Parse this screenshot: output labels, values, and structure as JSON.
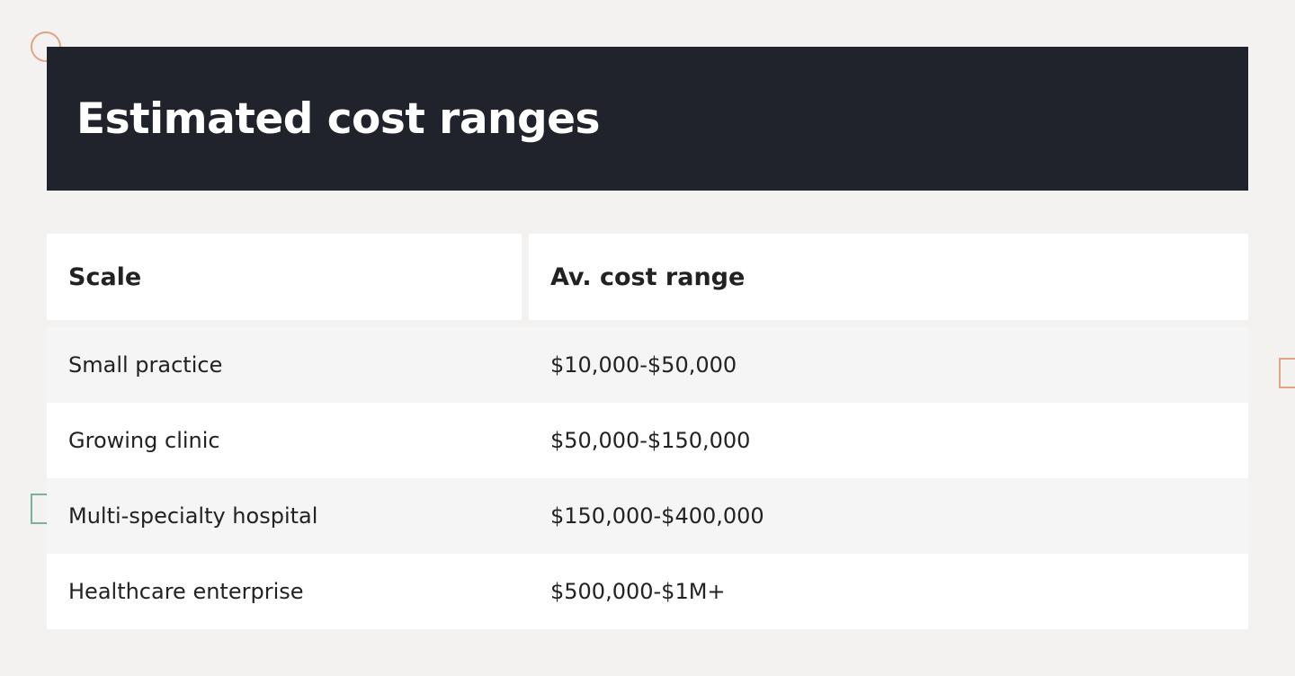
{
  "title": "Estimated cost ranges",
  "table": {
    "headers": [
      "Scale",
      "Av. cost range"
    ],
    "rows": [
      {
        "scale": "Small practice",
        "cost": "$10,000-$50,000"
      },
      {
        "scale": "Growing clinic",
        "cost": "$50,000-$150,000"
      },
      {
        "scale": "Multi-specialty hospital",
        "cost": "$150,000-$400,000"
      },
      {
        "scale": "Healthcare enterprise",
        "cost": "$500,000-$1M+"
      }
    ]
  },
  "colors": {
    "title_bar_bg": "#20232b",
    "page_bg": "#f3f2f0",
    "accent_orange": "#e0a385",
    "accent_teal": "#7ab2a2"
  }
}
